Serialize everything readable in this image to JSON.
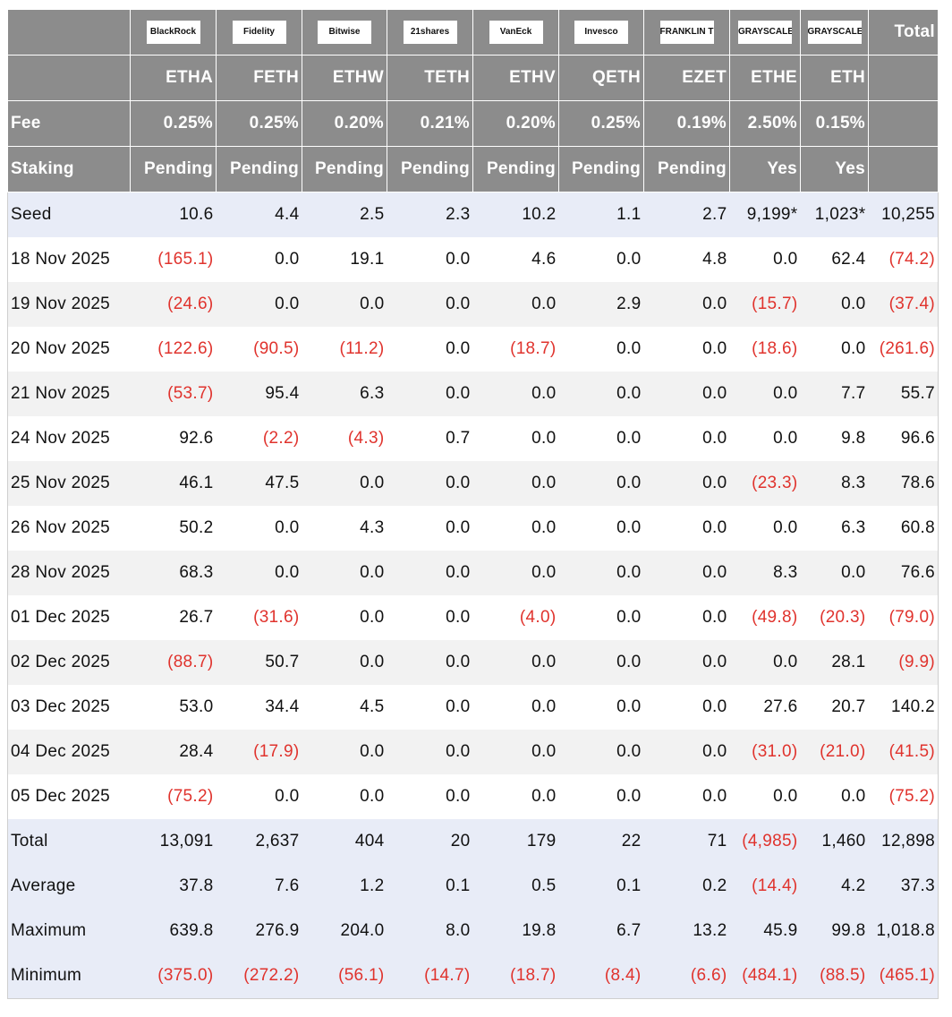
{
  "header": {
    "logos": [
      "BlackRock",
      "Fidelity",
      "Bitwise",
      "21shares",
      "VanEck",
      "Invesco",
      "FRANKLIN TEMPLETON",
      "GRAYSCALE",
      "GRAYSCALE"
    ],
    "total_label": "Total",
    "tickers": [
      "ETHA",
      "FETH",
      "ETHW",
      "TETH",
      "ETHV",
      "QETH",
      "EZET",
      "ETHE",
      "ETH"
    ],
    "fee_label": "Fee",
    "fees": [
      "0.25%",
      "0.25%",
      "0.20%",
      "0.21%",
      "0.20%",
      "0.25%",
      "0.19%",
      "2.50%",
      "0.15%"
    ],
    "staking_label": "Staking",
    "staking": [
      "Pending",
      "Pending",
      "Pending",
      "Pending",
      "Pending",
      "Pending",
      "Pending",
      "Yes",
      "Yes"
    ]
  },
  "rows": [
    [
      "Seed",
      "10.6",
      "4.4",
      "2.5",
      "2.3",
      "10.2",
      "1.1",
      "2.7",
      "9,199*",
      "1,023*",
      "10,255"
    ],
    [
      "18 Nov 2025",
      "(165.1)",
      "0.0",
      "19.1",
      "0.0",
      "4.6",
      "0.0",
      "4.8",
      "0.0",
      "62.4",
      "(74.2)"
    ],
    [
      "19 Nov 2025",
      "(24.6)",
      "0.0",
      "0.0",
      "0.0",
      "0.0",
      "2.9",
      "0.0",
      "(15.7)",
      "0.0",
      "(37.4)"
    ],
    [
      "20 Nov 2025",
      "(122.6)",
      "(90.5)",
      "(11.2)",
      "0.0",
      "(18.7)",
      "0.0",
      "0.0",
      "(18.6)",
      "0.0",
      "(261.6)"
    ],
    [
      "21 Nov 2025",
      "(53.7)",
      "95.4",
      "6.3",
      "0.0",
      "0.0",
      "0.0",
      "0.0",
      "0.0",
      "7.7",
      "55.7"
    ],
    [
      "24 Nov 2025",
      "92.6",
      "(2.2)",
      "(4.3)",
      "0.7",
      "0.0",
      "0.0",
      "0.0",
      "0.0",
      "9.8",
      "96.6"
    ],
    [
      "25 Nov 2025",
      "46.1",
      "47.5",
      "0.0",
      "0.0",
      "0.0",
      "0.0",
      "0.0",
      "(23.3)",
      "8.3",
      "78.6"
    ],
    [
      "26 Nov 2025",
      "50.2",
      "0.0",
      "4.3",
      "0.0",
      "0.0",
      "0.0",
      "0.0",
      "0.0",
      "6.3",
      "60.8"
    ],
    [
      "28 Nov 2025",
      "68.3",
      "0.0",
      "0.0",
      "0.0",
      "0.0",
      "0.0",
      "0.0",
      "8.3",
      "0.0",
      "76.6"
    ],
    [
      "01 Dec 2025",
      "26.7",
      "(31.6)",
      "0.0",
      "0.0",
      "(4.0)",
      "0.0",
      "0.0",
      "(49.8)",
      "(20.3)",
      "(79.0)"
    ],
    [
      "02 Dec 2025",
      "(88.7)",
      "50.7",
      "0.0",
      "0.0",
      "0.0",
      "0.0",
      "0.0",
      "0.0",
      "28.1",
      "(9.9)"
    ],
    [
      "03 Dec 2025",
      "53.0",
      "34.4",
      "4.5",
      "0.0",
      "0.0",
      "0.0",
      "0.0",
      "27.6",
      "20.7",
      "140.2"
    ],
    [
      "04 Dec 2025",
      "28.4",
      "(17.9)",
      "0.0",
      "0.0",
      "0.0",
      "0.0",
      "0.0",
      "(31.0)",
      "(21.0)",
      "(41.5)"
    ],
    [
      "05 Dec 2025",
      "(75.2)",
      "0.0",
      "0.0",
      "0.0",
      "0.0",
      "0.0",
      "0.0",
      "0.0",
      "0.0",
      "(75.2)"
    ],
    [
      "Total",
      "13,091",
      "2,637",
      "404",
      "20",
      "179",
      "22",
      "71",
      "(4,985)",
      "1,460",
      "12,898"
    ],
    [
      "Average",
      "37.8",
      "7.6",
      "1.2",
      "0.1",
      "0.5",
      "0.1",
      "0.2",
      "(14.4)",
      "4.2",
      "37.3"
    ],
    [
      "Maximum",
      "639.8",
      "276.9",
      "204.0",
      "8.0",
      "19.8",
      "6.7",
      "13.2",
      "45.9",
      "99.8",
      "1,018.8"
    ],
    [
      "Minimum",
      "(375.0)",
      "(272.2)",
      "(56.1)",
      "(14.7)",
      "(18.7)",
      "(8.4)",
      "(6.6)",
      "(484.1)",
      "(88.5)",
      "(465.1)"
    ]
  ]
}
